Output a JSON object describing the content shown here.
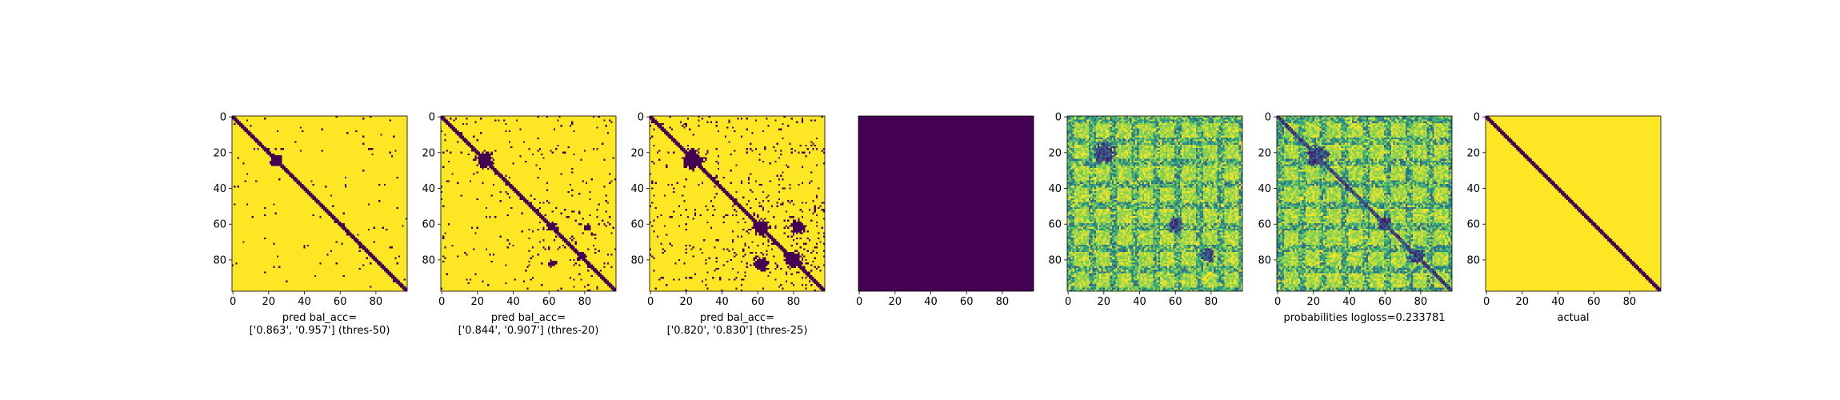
{
  "figure": {
    "background": "#ffffff",
    "colors": {
      "low": "#440154",
      "mid": "#21918c",
      "high": "#fde725"
    }
  },
  "chart_data": [
    {
      "type": "heatmap",
      "xticks": [
        "0",
        "20",
        "40",
        "60",
        "80"
      ],
      "yticks": [
        "0",
        "20",
        "40",
        "60",
        "80"
      ],
      "xlabel_lines": [
        "pred bal_acc=",
        "['0.863', '0.957'] (thres-50)"
      ],
      "matrix_size": 98,
      "colormap": "viridis",
      "binary": true,
      "diagonal_band": true,
      "blobs": [
        [
          24,
          24,
          3.2
        ],
        [
          58,
          58,
          1.6
        ]
      ],
      "noise": 0.05
    },
    {
      "type": "heatmap",
      "xticks": [
        "0",
        "20",
        "40",
        "60",
        "80"
      ],
      "yticks": [
        "0",
        "20",
        "40",
        "60",
        "80"
      ],
      "xlabel_lines": [
        "pred bal_acc=",
        "['0.844', '0.907'] (thres-20)"
      ],
      "matrix_size": 98,
      "colormap": "viridis",
      "binary": true,
      "diagonal_band": true,
      "blobs": [
        [
          24,
          24,
          4.5
        ],
        [
          62,
          62,
          2.5
        ],
        [
          78,
          78,
          2.5
        ],
        [
          62,
          82,
          2.0
        ],
        [
          82,
          62,
          2.0
        ]
      ],
      "noise": 0.14
    },
    {
      "type": "heatmap",
      "xticks": [
        "0",
        "20",
        "40",
        "60",
        "80"
      ],
      "yticks": [
        "0",
        "20",
        "40",
        "60",
        "80"
      ],
      "xlabel_lines": [
        "pred bal_acc=",
        "['0.820', '0.830'] (thres-25)"
      ],
      "matrix_size": 98,
      "colormap": "viridis",
      "binary": true,
      "diagonal_band": true,
      "blobs": [
        [
          24,
          24,
          5.5
        ],
        [
          62,
          62,
          4.5
        ],
        [
          80,
          80,
          4.5
        ],
        [
          62,
          82,
          4.0
        ],
        [
          82,
          62,
          4.0
        ]
      ],
      "noise": 0.24
    },
    {
      "type": "heatmap",
      "xticks": [
        "0",
        "20",
        "40",
        "60",
        "80"
      ],
      "yticks": [],
      "xlabel_lines": [],
      "matrix_size": 98,
      "colormap": "viridis",
      "uniform_value": 0
    },
    {
      "type": "heatmap",
      "xticks": [
        "0",
        "20",
        "40",
        "60",
        "80"
      ],
      "yticks": [
        "0",
        "20",
        "40",
        "60",
        "80"
      ],
      "xlabel_lines": [],
      "matrix_size": 98,
      "colormap": "viridis",
      "binary": false,
      "diagonal_band": false,
      "blobs": [
        [
          20,
          20,
          5.5
        ],
        [
          60,
          60,
          4.0
        ],
        [
          78,
          78,
          4.0
        ]
      ],
      "noise": 0.45
    },
    {
      "type": "heatmap",
      "xticks": [
        "0",
        "20",
        "40",
        "60",
        "80"
      ],
      "yticks": [
        "0",
        "20",
        "40",
        "60",
        "80"
      ],
      "xlabel_lines": [
        "probabilities logloss=0.233781"
      ],
      "matrix_size": 98,
      "colormap": "viridis",
      "binary": false,
      "diagonal_band": true,
      "blobs": [
        [
          22,
          22,
          5.5
        ],
        [
          60,
          60,
          4.0
        ],
        [
          78,
          78,
          4.0
        ]
      ],
      "noise": 0.45
    },
    {
      "type": "heatmap",
      "xticks": [
        "0",
        "20",
        "40",
        "60",
        "80"
      ],
      "yticks": [
        "0",
        "20",
        "40",
        "60",
        "80"
      ],
      "xlabel_lines": [
        "actual"
      ],
      "matrix_size": 98,
      "colormap": "viridis",
      "binary": true,
      "diagonal_band": true,
      "blobs": [],
      "noise": 0
    }
  ]
}
